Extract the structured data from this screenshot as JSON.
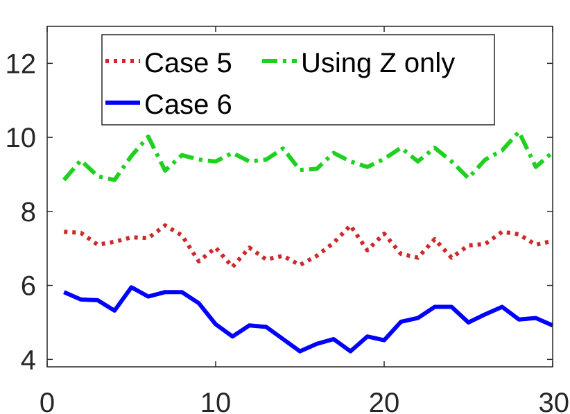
{
  "chart_data": {
    "type": "line",
    "title": "",
    "xlabel": "",
    "ylabel": "",
    "xlim": [
      0,
      30
    ],
    "ylim": [
      3.8,
      13
    ],
    "x_ticks": [
      0,
      10,
      20,
      30
    ],
    "y_ticks": [
      4,
      6,
      8,
      10,
      12
    ],
    "x_tick_labels": [
      "0",
      "10",
      "20",
      "30"
    ],
    "y_tick_labels": [
      "4",
      "6",
      "8",
      "10",
      "12"
    ],
    "grid": false,
    "legend_position": "top",
    "x": [
      1,
      2,
      3,
      4,
      5,
      6,
      7,
      8,
      9,
      10,
      11,
      12,
      13,
      14,
      15,
      16,
      17,
      18,
      19,
      20,
      21,
      22,
      23,
      24,
      25,
      26,
      27,
      28,
      29,
      30
    ],
    "series": [
      {
        "name": "Case 5",
        "color": "#cc2a2a",
        "style": "dotted",
        "values": [
          7.45,
          7.42,
          7.1,
          7.18,
          7.3,
          7.28,
          7.62,
          7.35,
          6.65,
          7.02,
          6.5,
          7.02,
          6.7,
          6.8,
          6.55,
          6.8,
          7.15,
          7.62,
          6.95,
          7.4,
          6.85,
          6.75,
          7.25,
          6.75,
          7.08,
          7.12,
          7.45,
          7.38,
          7.1,
          7.2
        ]
      },
      {
        "name": "Using Z only",
        "color": "#1fd11f",
        "style": "dashdot",
        "values": [
          8.85,
          9.38,
          8.95,
          8.85,
          9.5,
          10.02,
          9.1,
          9.52,
          9.4,
          9.35,
          9.58,
          9.35,
          9.4,
          9.7,
          9.12,
          9.15,
          9.58,
          9.35,
          9.2,
          9.42,
          9.72,
          9.35,
          9.72,
          9.35,
          8.9,
          9.4,
          9.65,
          10.15,
          9.2,
          9.6
        ]
      },
      {
        "name": "Case 6",
        "color": "#0000ff",
        "style": "solid",
        "values": [
          5.82,
          5.62,
          5.6,
          5.32,
          5.95,
          5.7,
          5.82,
          5.82,
          5.52,
          4.95,
          4.62,
          4.92,
          4.88,
          4.55,
          4.22,
          4.42,
          4.55,
          4.22,
          4.62,
          4.52,
          5.02,
          5.12,
          5.42,
          5.42,
          5.0,
          5.22,
          5.42,
          5.08,
          5.12,
          4.92
        ]
      }
    ]
  }
}
